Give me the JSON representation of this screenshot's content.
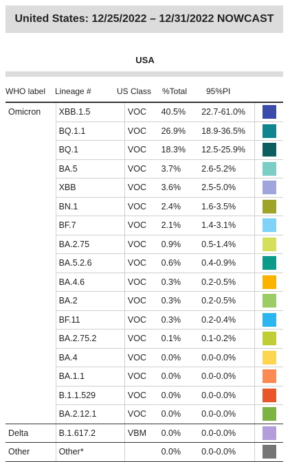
{
  "title": "United States: 12/25/2022 – 12/31/2022 NOWCAST",
  "region": "USA",
  "columns": {
    "who": "WHO label",
    "lineage": "Lineage #",
    "us_class": "US Class",
    "pct": "%Total",
    "pi": "95%PI"
  },
  "groups": [
    {
      "who": "Omicron",
      "rows": [
        {
          "lineage": "XBB.1.5",
          "cls": "VOC",
          "pct": "40.5%",
          "pi": "22.7-61.0%",
          "color": "#3b4bab"
        },
        {
          "lineage": "BQ.1.1",
          "cls": "VOC",
          "pct": "26.9%",
          "pi": "18.9-36.5%",
          "color": "#11858f"
        },
        {
          "lineage": "BQ.1",
          "cls": "VOC",
          "pct": "18.3%",
          "pi": "12.5-25.9%",
          "color": "#0e5d60"
        },
        {
          "lineage": "BA.5",
          "cls": "VOC",
          "pct": "3.7%",
          "pi": "2.6-5.2%",
          "color": "#7dcdc7"
        },
        {
          "lineage": "XBB",
          "cls": "VOC",
          "pct": "3.6%",
          "pi": "2.5-5.0%",
          "color": "#9ea6dd"
        },
        {
          "lineage": "BN.1",
          "cls": "VOC",
          "pct": "2.4%",
          "pi": "1.6-3.5%",
          "color": "#9ea428"
        },
        {
          "lineage": "BF.7",
          "cls": "VOC",
          "pct": "2.1%",
          "pi": "1.4-3.1%",
          "color": "#7fd3f8"
        },
        {
          "lineage": "BA.2.75",
          "cls": "VOC",
          "pct": "0.9%",
          "pi": "0.5-1.4%",
          "color": "#d5e05a"
        },
        {
          "lineage": "BA.5.2.6",
          "cls": "VOC",
          "pct": "0.6%",
          "pi": "0.4-0.9%",
          "color": "#0c9a8a"
        },
        {
          "lineage": "BA.4.6",
          "cls": "VOC",
          "pct": "0.3%",
          "pi": "0.2-0.5%",
          "color": "#fbb300"
        },
        {
          "lineage": "BA.2",
          "cls": "VOC",
          "pct": "0.3%",
          "pi": "0.2-0.5%",
          "color": "#9ccc66"
        },
        {
          "lineage": "BF.11",
          "cls": "VOC",
          "pct": "0.3%",
          "pi": "0.2-0.4%",
          "color": "#2bb6f2"
        },
        {
          "lineage": "BA.2.75.2",
          "cls": "VOC",
          "pct": "0.1%",
          "pi": "0.1-0.2%",
          "color": "#c0cd35"
        },
        {
          "lineage": "BA.4",
          "cls": "VOC",
          "pct": "0.0%",
          "pi": "0.0-0.0%",
          "color": "#fdd54f"
        },
        {
          "lineage": "BA.1.1",
          "cls": "VOC",
          "pct": "0.0%",
          "pi": "0.0-0.0%",
          "color": "#fd8a55"
        },
        {
          "lineage": "B.1.1.529",
          "cls": "VOC",
          "pct": "0.0%",
          "pi": "0.0-0.0%",
          "color": "#e8562a"
        },
        {
          "lineage": "BA.2.12.1",
          "cls": "VOC",
          "pct": "0.0%",
          "pi": "0.0-0.0%",
          "color": "#7cb342"
        }
      ]
    },
    {
      "who": "Delta",
      "rows": [
        {
          "lineage": "B.1.617.2",
          "cls": "VBM",
          "pct": "0.0%",
          "pi": "0.0-0.0%",
          "color": "#b39ddb"
        }
      ]
    },
    {
      "who": "Other",
      "rows": [
        {
          "lineage": "Other*",
          "cls": "",
          "pct": "0.0%",
          "pi": "0.0-0.0%",
          "color": "#757575"
        }
      ]
    }
  ]
}
